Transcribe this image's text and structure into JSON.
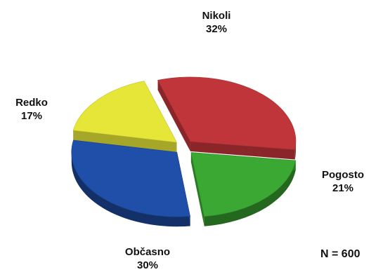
{
  "chart_data": {
    "type": "pie",
    "title": "",
    "slices": [
      {
        "label": "Nikoli",
        "value": 32,
        "value_text": "32%",
        "color": "#c0353a"
      },
      {
        "label": "Pogosto",
        "value": 21,
        "value_text": "21%",
        "color": "#3aa832"
      },
      {
        "label": "Občasno",
        "value": 30,
        "value_text": "30%",
        "color": "#1f4fa8"
      },
      {
        "label": "Redko",
        "value": 17,
        "value_text": "17%",
        "color": "#e6e638"
      }
    ],
    "exploded": true,
    "style": "3d",
    "legend": "none",
    "note": "N = 600"
  }
}
